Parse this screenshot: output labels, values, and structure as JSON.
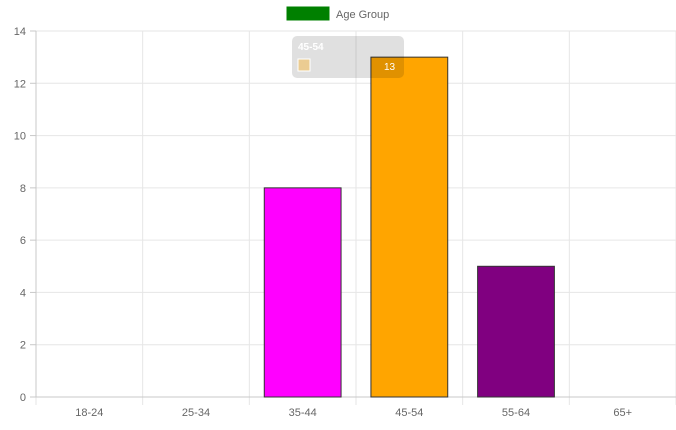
{
  "chart_data": {
    "type": "bar",
    "categories": [
      "18-24",
      "25-34",
      "35-44",
      "45-54",
      "55-64",
      "65+"
    ],
    "series": [
      {
        "name": "Age Group",
        "values": [
          0,
          0,
          8,
          13,
          5,
          0
        ]
      }
    ],
    "bar_colors": [
      "#008000",
      "#1e90ff",
      "#ff00ff",
      "#ffa500",
      "#800080",
      "#808080"
    ],
    "legend": {
      "label": "Age Group",
      "color": "#008000",
      "position": "top-center"
    },
    "ylim": [
      0,
      14
    ],
    "yticks": [
      0,
      2,
      4,
      6,
      8,
      10,
      12,
      14
    ],
    "grid": true,
    "tooltip": {
      "title": "45-54",
      "value": "13",
      "swatch_color": "#ffa500"
    },
    "gridline_color": "#e6e6e6",
    "axis_color": "#c8c8c8",
    "bar_border_color": "#333333"
  }
}
